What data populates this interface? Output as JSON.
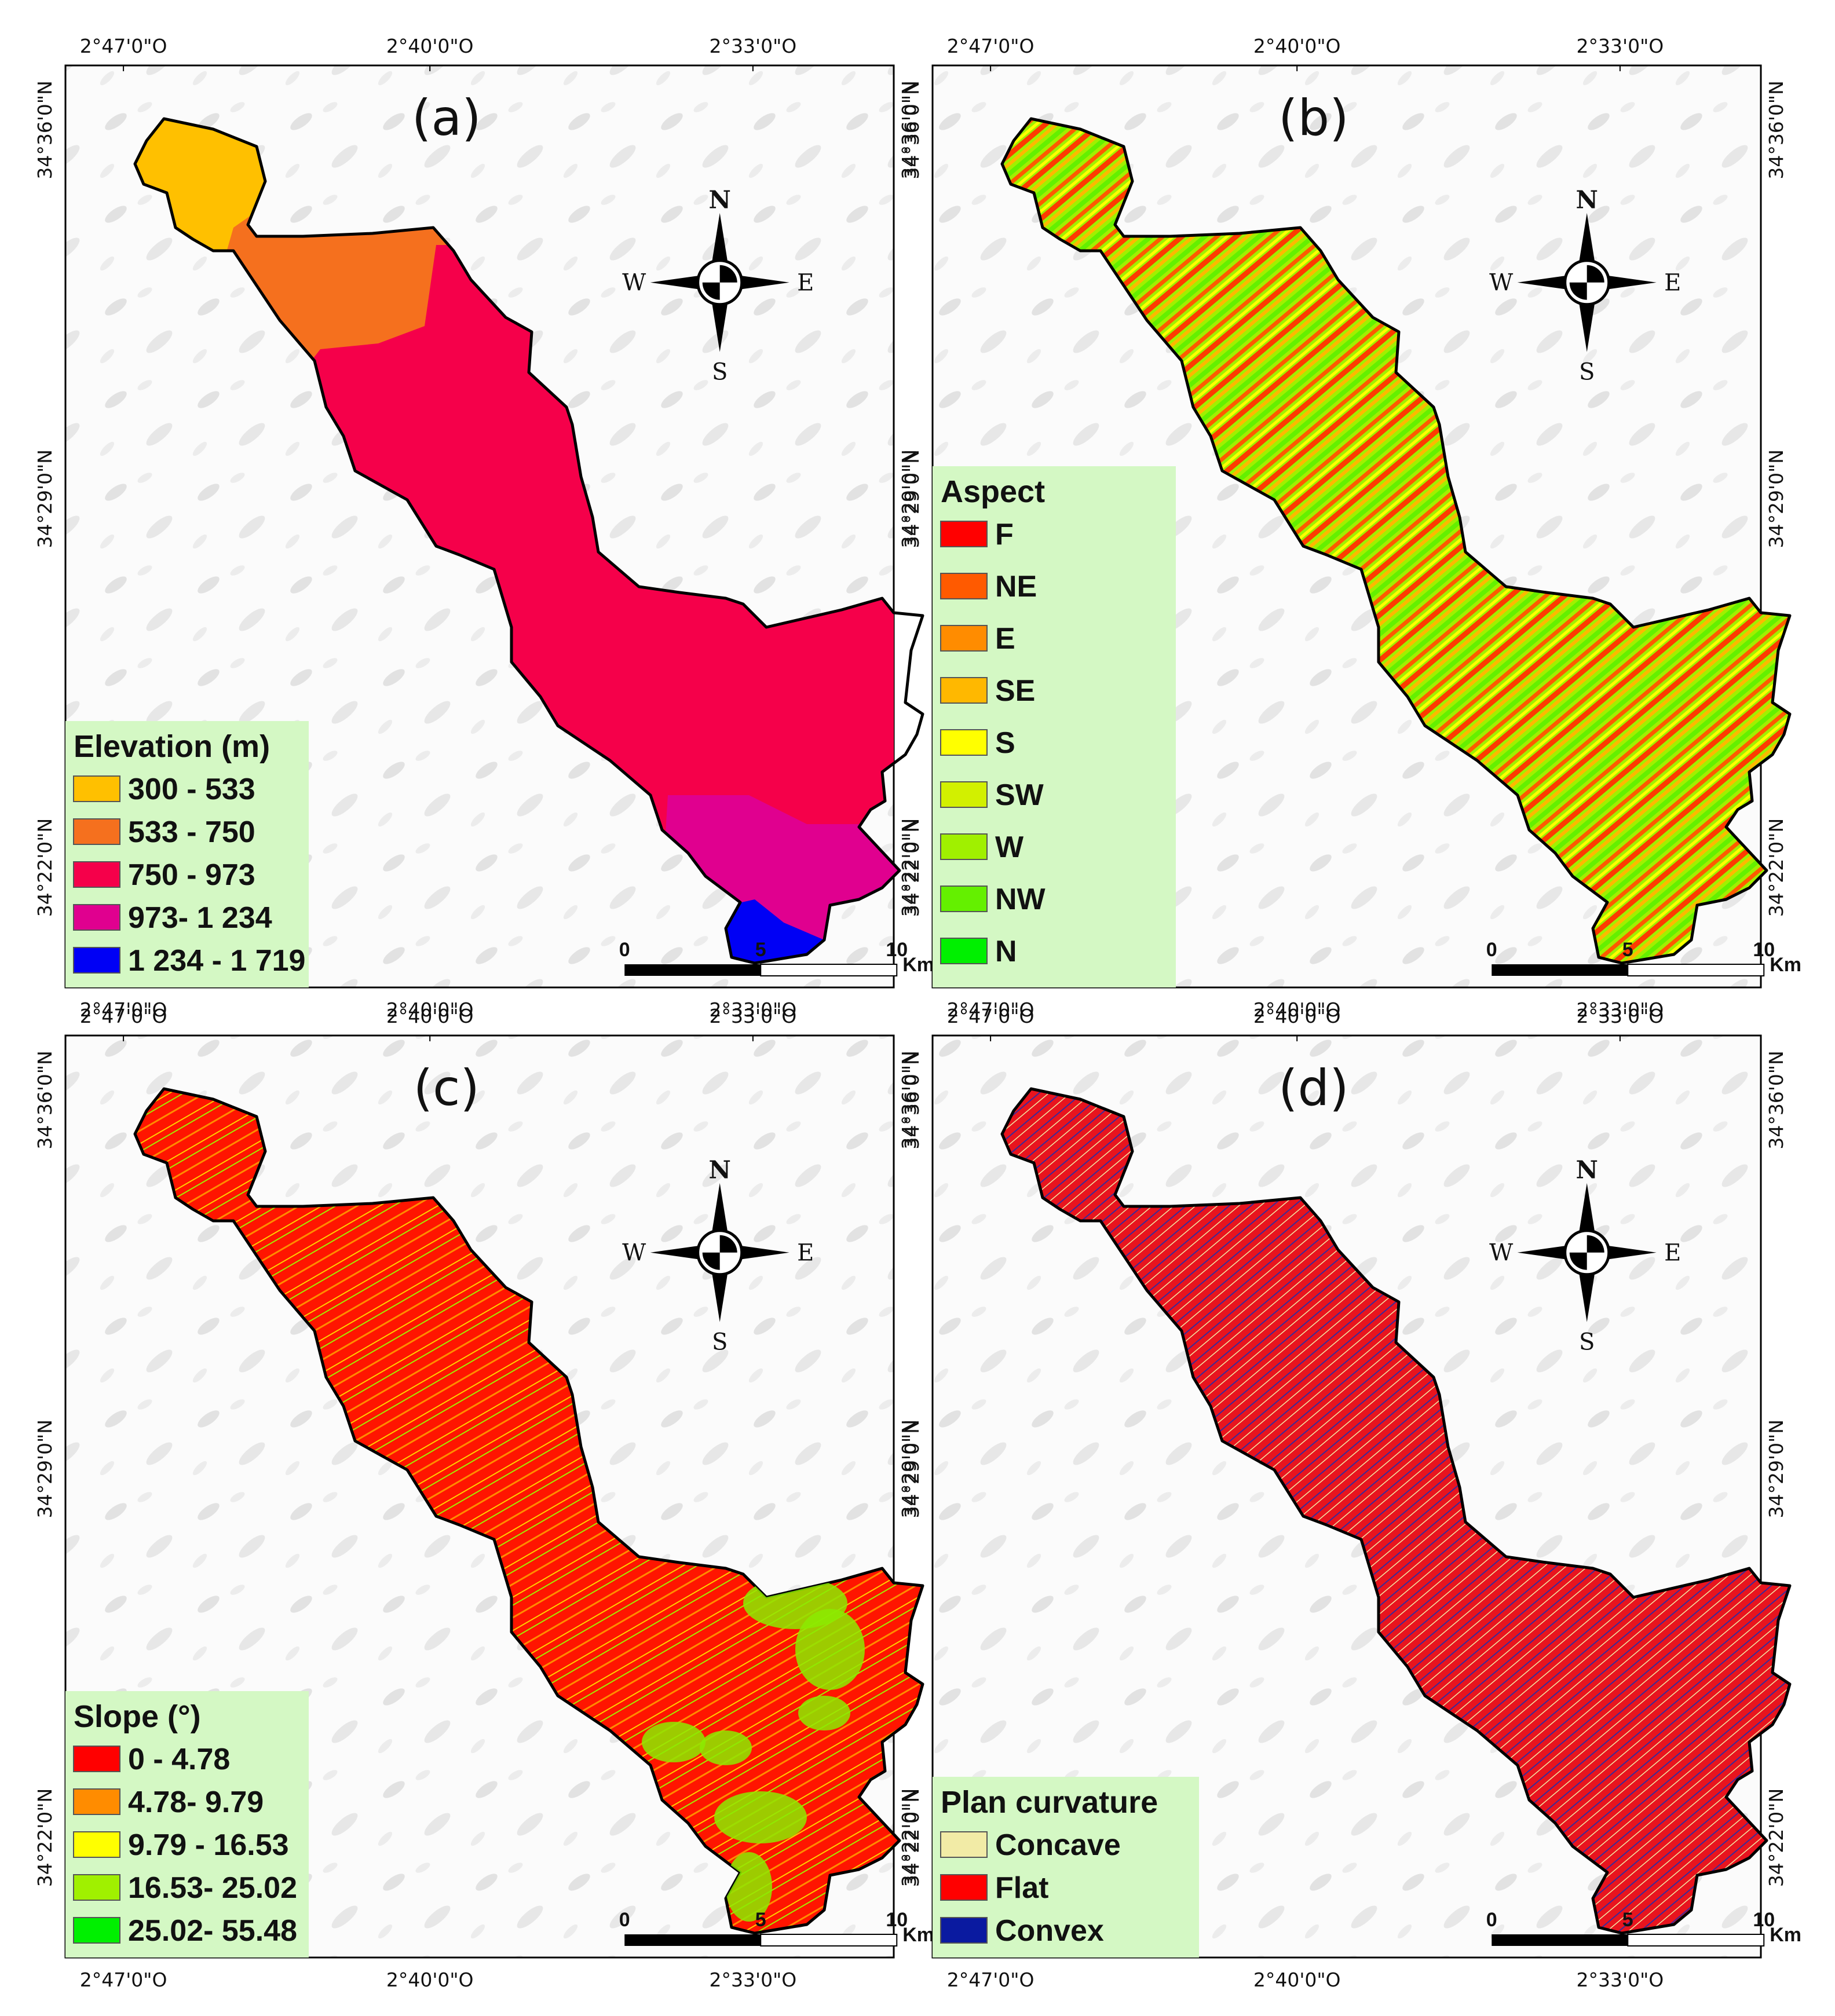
{
  "panels": [
    {
      "id": "a",
      "label": "(a)",
      "legend_title": "Elevation (m)",
      "legend_items": [
        {
          "label": "300 - 533",
          "color": "#FFC000"
        },
        {
          "label": "533 - 750",
          "color": "#F5701E"
        },
        {
          "label": "750 - 973",
          "color": "#F5004A"
        },
        {
          "label": "973- 1 234",
          "color": "#E0008F"
        },
        {
          "label": "1 234 - 1 719",
          "color": "#0000F5"
        }
      ],
      "fill_style": "elevation"
    },
    {
      "id": "b",
      "label": "(b)",
      "legend_title": "Aspect",
      "legend_items": [
        {
          "label": "F",
          "color": "#FF0000"
        },
        {
          "label": "NE",
          "color": "#FF5A00"
        },
        {
          "label": "E",
          "color": "#FF8C00"
        },
        {
          "label": "SE",
          "color": "#FFB800"
        },
        {
          "label": "S",
          "color": "#FFFF00"
        },
        {
          "label": "SW",
          "color": "#D2F000"
        },
        {
          "label": "W",
          "color": "#A0F000"
        },
        {
          "label": "NW",
          "color": "#64F000"
        },
        {
          "label": "N",
          "color": "#00F000"
        }
      ],
      "fill_style": "aspect"
    },
    {
      "id": "c",
      "label": "(c)",
      "legend_title": "Slope (°)",
      "legend_items": [
        {
          "label": "0 - 4.78",
          "color": "#FF0000"
        },
        {
          "label": "4.78- 9.79",
          "color": "#FF8C00"
        },
        {
          "label": "9.79 - 16.53",
          "color": "#FFFF00"
        },
        {
          "label": "16.53- 25.02",
          "color": "#A0F000"
        },
        {
          "label": "25.02- 55.48",
          "color": "#00F000"
        }
      ],
      "fill_style": "slope"
    },
    {
      "id": "d",
      "label": "(d)",
      "legend_title": "Plan curvature",
      "legend_items": [
        {
          "label": "Concave",
          "color": "#F2EBA6"
        },
        {
          "label": "Flat",
          "color": "#FF0000"
        },
        {
          "label": "Convex",
          "color": "#0A1AA0"
        }
      ],
      "fill_style": "curvature"
    }
  ],
  "longitude_labels": [
    "2°47'0\"O",
    "2°40'0\"O",
    "2°33'0\"O"
  ],
  "latitude_labels": [
    "34°36'0\"N",
    "34°29'0\"N",
    "34°22'0\"N"
  ],
  "scale_bar": {
    "ticks": [
      "0",
      "5",
      "10"
    ],
    "unit": "Km"
  },
  "compass": {
    "north": "N",
    "south": "S",
    "east": "E",
    "west": "W"
  },
  "legend_background": "#D4F8C4"
}
